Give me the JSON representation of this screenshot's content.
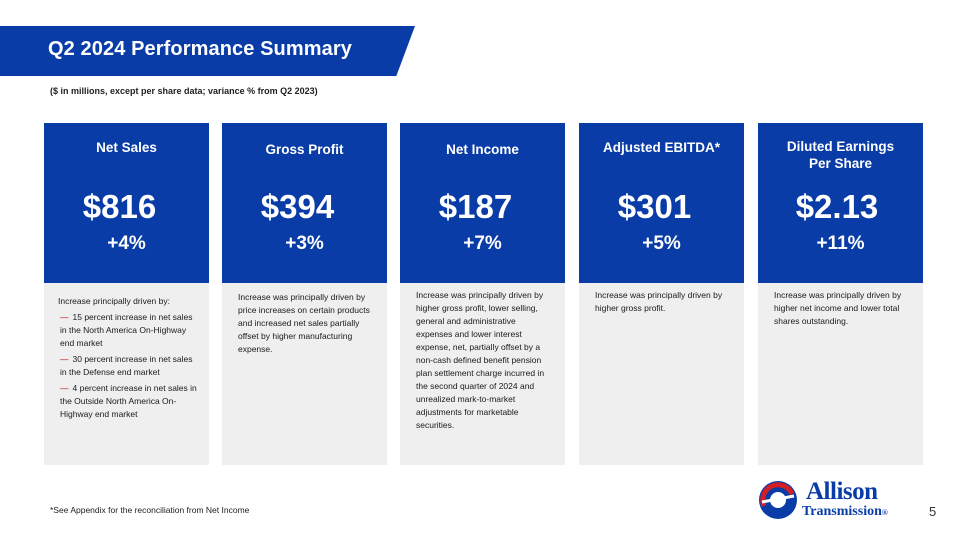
{
  "header": {
    "title": "Q2 2024 Performance Summary",
    "subtitle": "($ in millions, except per share data; variance % from Q2 2023)"
  },
  "colors": {
    "brand_blue": "#0a3ca8",
    "panel_gray": "#efefef",
    "accent_red": "#c00000"
  },
  "cards": [
    {
      "title": "Net Sales",
      "value": "$816",
      "variance": "+4%",
      "intro": "Increase principally driven by:",
      "bullets": [
        "15 percent increase in net sales in the North America On-Highway end market",
        "30 percent increase in net sales in the Defense end market",
        "4 percent increase in net sales in the Outside North America On-Highway end market"
      ]
    },
    {
      "title": "Gross Profit",
      "value": "$394",
      "variance": "+3%",
      "text": "Increase was principally driven by price increases on certain products and increased net sales partially offset by higher manufacturing expense."
    },
    {
      "title": "Net Income",
      "value": "$187",
      "variance": "+7%",
      "text": "Increase was principally driven by higher gross profit, lower selling, general and administrative expenses and lower interest expense, net, partially offset by a non-cash defined benefit pension plan settlement charge incurred in the second quarter of 2024 and unrealized mark-to-market adjustments for marketable securities."
    },
    {
      "title": "Adjusted EBITDA*",
      "value": "$301",
      "variance": "+5%",
      "text": "Increase was principally driven by higher gross profit."
    },
    {
      "title_line1": "Diluted Earnings",
      "title_line2": "Per Share",
      "value": "$2.13",
      "variance": "+11%",
      "text": "Increase was principally driven by higher net income and lower total shares outstanding."
    }
  ],
  "footer": {
    "footnote": "*See Appendix for the reconciliation from Net Income",
    "page_number": "5",
    "logo_word1": "Allison",
    "logo_word2": "Transmission",
    "logo_mark": "®"
  }
}
